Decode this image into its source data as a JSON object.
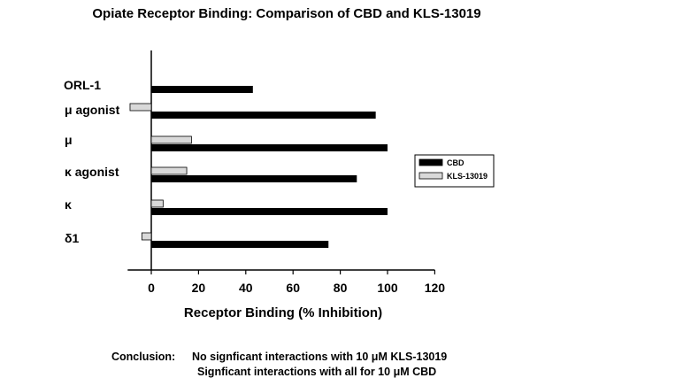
{
  "chart_data": {
    "type": "bar",
    "orientation": "horizontal",
    "title": "Opiate Receptor Binding: Comparison of CBD and KLS-13019",
    "xlabel": "Receptor Binding (% Inhibition)",
    "ylabel": "",
    "categories": [
      "ORL-1",
      "μ agonist",
      "μ",
      "κ  agonist",
      "κ",
      "δ1"
    ],
    "series": [
      {
        "name": "CBD",
        "color": "#000000",
        "values": [
          43,
          95,
          100,
          87,
          100,
          75
        ]
      },
      {
        "name": "KLS-13019",
        "color": "#d9d9d9",
        "values": [
          null,
          -9,
          17,
          15,
          5,
          -4
        ]
      }
    ],
    "xlim": [
      -10,
      120
    ],
    "xticks": [
      0,
      20,
      40,
      60,
      80,
      100,
      120
    ],
    "grid": false,
    "legend_position": "right"
  },
  "conclusion": {
    "label": "Conclusion:",
    "line1": "No signficant interactions with 10 μM KLS-13019",
    "line2": "Signficant interactions with all for 10 μM CBD"
  }
}
